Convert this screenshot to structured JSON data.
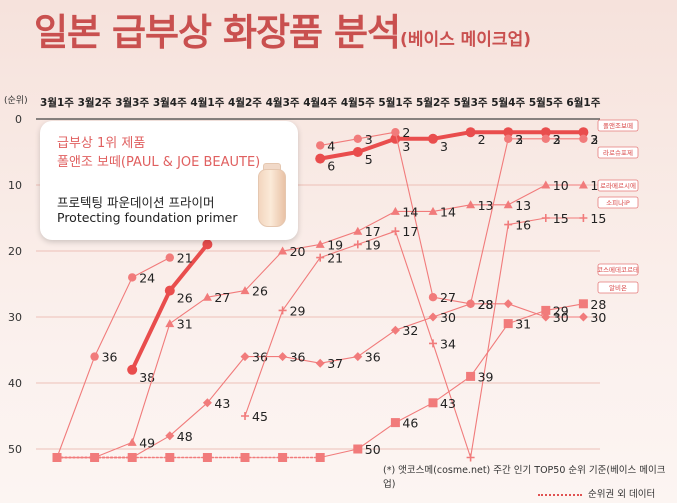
{
  "header": {
    "title": "일본 급부상 화장품 분석",
    "subtitle": "(베이스 메이크업)"
  },
  "callout": {
    "line1": "급부상 1위 제품",
    "line2": "폴앤조 보떼(PAUL & JOE BEAUTE)",
    "line3": "프로텍팅 파운데이션 프라이머",
    "line4": "Protecting foundation primer"
  },
  "footnote": "(*) 앳코스메(cosme.net) 주간 인기 TOP50 순위 기준(베이스 메이크업)",
  "legend_label": "순위권 외 데이터",
  "colors": {
    "title": "#c9504f",
    "series": "#ef6e6e",
    "series_bold": "#e94d4d"
  },
  "chart_data": {
    "type": "line",
    "ylabel": "(순위)",
    "y_reversed": true,
    "ylim": [
      0,
      50
    ],
    "yticks": [
      0,
      10,
      20,
      30,
      40,
      50
    ],
    "categories": [
      "3월1주",
      "3월2주",
      "3월3주",
      "3월4주",
      "4월1주",
      "4월2주",
      "4월3주",
      "4월4주",
      "4월5주",
      "5월1주",
      "5월2주",
      "5월3주",
      "5월4주",
      "5월5주",
      "6월1주"
    ],
    "out_of_rank_value": 51,
    "series": [
      {
        "name": "폴앤조보떼",
        "marker": "circle",
        "emphasis": true,
        "values": [
          null,
          null,
          38,
          26,
          19,
          null,
          null,
          6,
          5,
          3,
          3,
          2,
          2,
          2,
          2
        ],
        "labels": [
          null,
          null,
          "38",
          "26",
          null,
          null,
          null,
          "6",
          "5",
          "3",
          "3",
          "2",
          "2",
          "2",
          "2"
        ]
      },
      {
        "name": "",
        "marker": "circle",
        "values": [
          51,
          36,
          24,
          21,
          null,
          null,
          null,
          4,
          3,
          2,
          27,
          28,
          3,
          3,
          3
        ],
        "labels": [
          null,
          "36",
          "24",
          "21",
          null,
          null,
          null,
          "4",
          "3",
          "2",
          "27",
          "28",
          "3",
          "3",
          "3"
        ]
      },
      {
        "name": "라로슈포제",
        "marker": "diamond",
        "values": [
          51,
          51,
          51,
          48,
          43,
          36,
          36,
          37,
          36,
          32,
          30,
          28,
          28,
          30,
          30
        ],
        "labels": [
          null,
          null,
          null,
          "48",
          "43",
          "36",
          "36",
          "37",
          "36",
          "32",
          "30",
          "28",
          null,
          "30",
          "30"
        ]
      },
      {
        "name": "로라메르시에",
        "marker": "triangle",
        "values": [
          51,
          51,
          49,
          31,
          27,
          26,
          20,
          19,
          17,
          14,
          14,
          13,
          13,
          10,
          10
        ],
        "labels": [
          null,
          null,
          "49",
          "31",
          "27",
          "26",
          "20",
          "19",
          "17",
          "14",
          "14",
          "13",
          "13",
          "10",
          "10"
        ]
      },
      {
        "name": "소피나iP",
        "marker": "plus",
        "values": [
          51,
          51,
          51,
          null,
          null,
          45,
          29,
          21,
          19,
          17,
          34,
          51,
          16,
          15,
          15
        ],
        "labels": [
          null,
          null,
          null,
          null,
          null,
          "45",
          "29",
          "21",
          "19",
          "17",
          "34",
          null,
          "16",
          "15",
          "15"
        ]
      },
      {
        "name": "코스메데코르테",
        "marker": "square",
        "values": [
          51,
          51,
          51,
          51,
          51,
          51,
          51,
          51,
          50,
          46,
          43,
          39,
          31,
          29,
          28
        ],
        "labels": [
          null,
          null,
          null,
          null,
          null,
          null,
          null,
          null,
          "50",
          "46",
          "43",
          "39",
          "31",
          "29",
          "28"
        ]
      }
    ],
    "right_labels": [
      "폴앤조보떼",
      "라로슈포제",
      "로라메르시에",
      "소피나iP",
      "코스메데코르테",
      "알비온"
    ]
  }
}
